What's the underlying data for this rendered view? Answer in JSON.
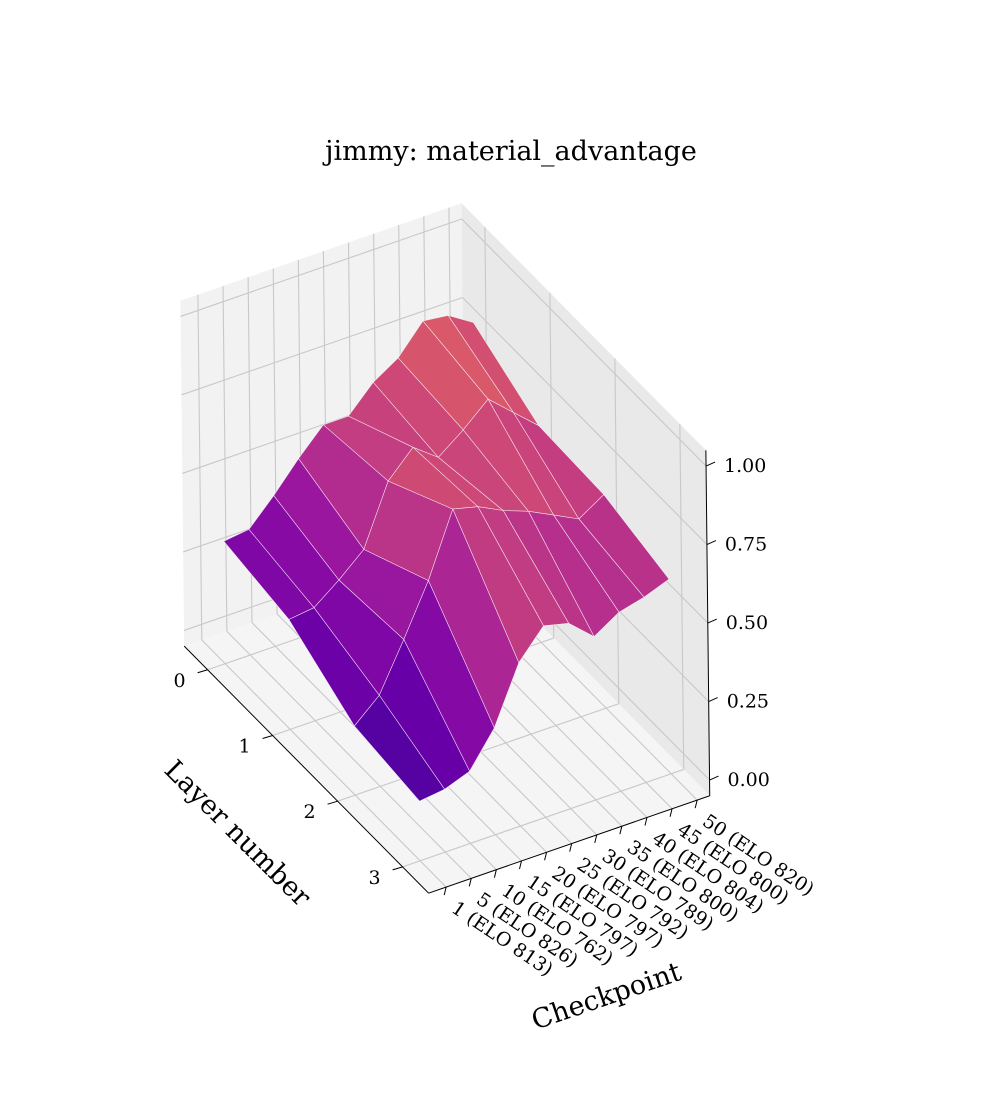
{
  "chart_data": {
    "type": "surface3d",
    "title": "jimmy: material_advantage",
    "xlabel": "Checkpoint",
    "ylabel": "Layer number",
    "zlabel": "",
    "x_tick_labels": [
      "1 (ELO 813)",
      "5 (ELO 826)",
      "10 (ELO 762)",
      "15 (ELO 797)",
      "20 (ELO 797)",
      "25 (ELO 792)",
      "30 (ELO 789)",
      "35 (ELO 800)",
      "40 (ELO 804)",
      "45 (ELO 800)",
      "50 (ELO 820)"
    ],
    "y_ticks": [
      0,
      1,
      2,
      3
    ],
    "zlim": [
      0,
      1
    ],
    "z_ticks": [
      "0.00",
      "0.25",
      "0.50",
      "0.75",
      "1.00"
    ],
    "colormap": "plasma",
    "colormap_range": [
      0,
      1
    ],
    "grid": true,
    "z_values": [
      [
        0.34,
        0.35,
        0.43,
        0.52,
        0.6,
        0.6,
        0.68,
        0.73,
        0.82,
        0.81,
        0.76
      ],
      [
        0.3,
        0.31,
        0.37,
        0.44,
        0.63,
        0.71,
        0.65,
        0.71,
        0.78,
        0.71,
        0.64
      ],
      [
        0.17,
        0.24,
        0.39,
        0.55,
        0.75,
        0.73,
        0.69,
        0.66,
        0.62,
        0.58,
        0.63
      ],
      [
        0.14,
        0.15,
        0.18,
        0.29,
        0.47,
        0.56,
        0.54,
        0.47,
        0.52,
        0.54,
        0.57
      ]
    ]
  }
}
